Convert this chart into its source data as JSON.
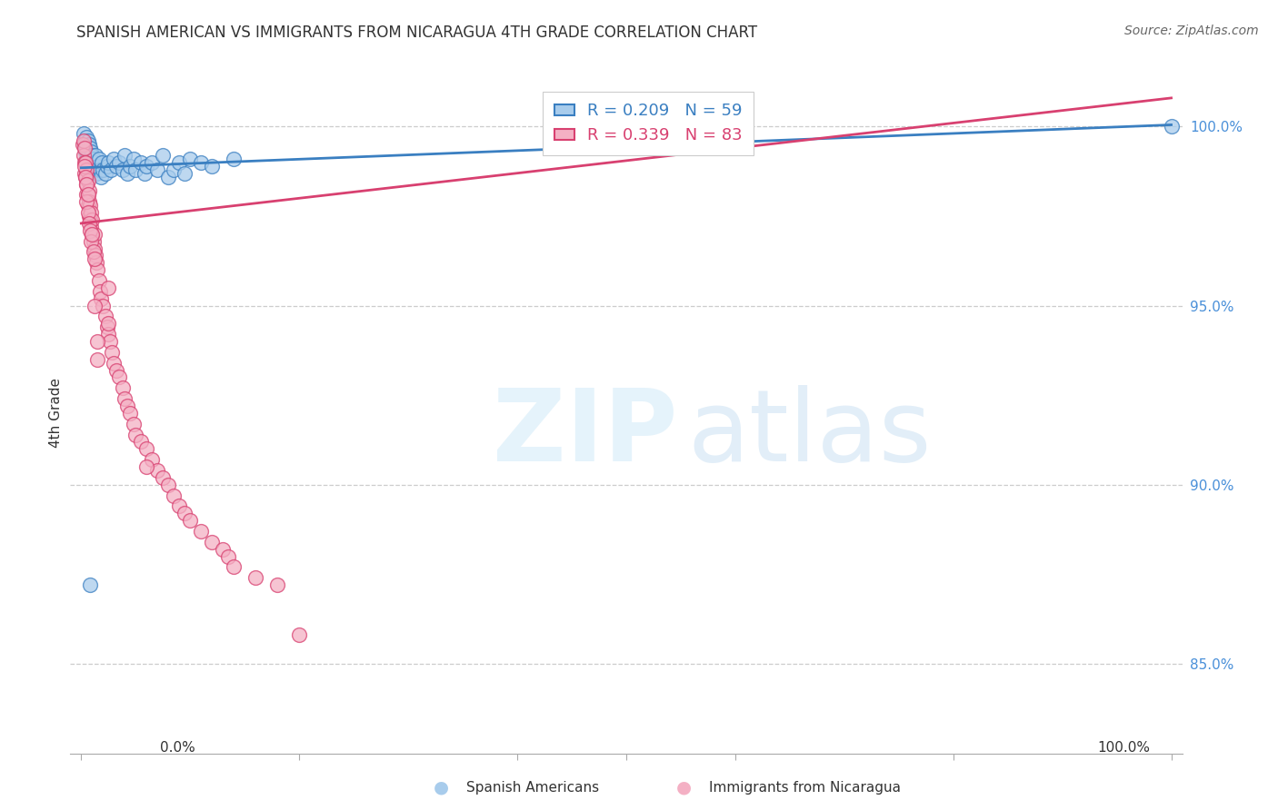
{
  "title": "SPANISH AMERICAN VS IMMIGRANTS FROM NICARAGUA 4TH GRADE CORRELATION CHART",
  "source": "Source: ZipAtlas.com",
  "ylabel": "4th Grade",
  "color_blue": "#a8ccec",
  "color_pink": "#f4b0c4",
  "color_blue_line": "#3a7fc1",
  "color_pink_line": "#d84070",
  "legend_r_blue": "R = 0.209",
  "legend_n_blue": "N = 59",
  "legend_r_pink": "R = 0.339",
  "legend_n_pink": "N = 83",
  "ymin": 82.5,
  "ymax": 101.5,
  "xmin": -1.0,
  "xmax": 101.0,
  "blue_reg": [
    0,
    100,
    98.85,
    100.05
  ],
  "pink_reg": [
    0,
    100,
    97.3,
    100.8
  ],
  "blue_x": [
    0.2,
    0.3,
    0.4,
    0.4,
    0.5,
    0.5,
    0.5,
    0.6,
    0.6,
    0.6,
    0.7,
    0.7,
    0.7,
    0.8,
    0.8,
    0.9,
    0.9,
    1.0,
    1.0,
    1.1,
    1.2,
    1.3,
    1.3,
    1.4,
    1.5,
    1.6,
    1.7,
    1.8,
    1.9,
    2.0,
    2.2,
    2.4,
    2.5,
    2.7,
    3.0,
    3.2,
    3.5,
    3.8,
    4.0,
    4.2,
    4.5,
    4.8,
    5.0,
    5.5,
    5.8,
    6.0,
    6.5,
    7.0,
    7.5,
    8.0,
    8.5,
    9.0,
    9.5,
    10.0,
    11.0,
    12.0,
    14.0,
    0.8,
    100.0
  ],
  "blue_y": [
    99.8,
    99.5,
    99.6,
    99.3,
    99.7,
    99.4,
    99.1,
    99.6,
    99.2,
    98.9,
    99.5,
    99.1,
    98.7,
    99.4,
    99.0,
    99.3,
    98.8,
    99.2,
    98.9,
    99.1,
    99.0,
    98.8,
    99.2,
    98.7,
    98.9,
    99.1,
    98.8,
    98.6,
    99.0,
    98.8,
    98.7,
    98.9,
    99.0,
    98.8,
    99.1,
    98.9,
    99.0,
    98.8,
    99.2,
    98.7,
    98.9,
    99.1,
    98.8,
    99.0,
    98.7,
    98.9,
    99.0,
    98.8,
    99.2,
    98.6,
    98.8,
    99.0,
    98.7,
    99.1,
    99.0,
    98.9,
    99.1,
    87.2,
    100.0
  ],
  "pink_x": [
    0.1,
    0.2,
    0.2,
    0.3,
    0.3,
    0.3,
    0.4,
    0.4,
    0.5,
    0.5,
    0.5,
    0.6,
    0.6,
    0.6,
    0.7,
    0.7,
    0.7,
    0.8,
    0.8,
    0.9,
    0.9,
    1.0,
    1.0,
    1.1,
    1.2,
    1.2,
    1.3,
    1.4,
    1.5,
    1.6,
    1.7,
    1.8,
    2.0,
    2.2,
    2.4,
    2.5,
    2.6,
    2.8,
    3.0,
    3.2,
    3.5,
    3.8,
    4.0,
    4.2,
    4.5,
    4.8,
    5.0,
    5.5,
    6.0,
    6.5,
    7.0,
    7.5,
    8.0,
    8.5,
    9.0,
    9.5,
    10.0,
    11.0,
    12.0,
    13.0,
    13.5,
    14.0,
    16.0,
    18.0,
    20.0,
    0.3,
    0.4,
    0.5,
    0.5,
    0.6,
    0.6,
    0.7,
    0.8,
    0.9,
    1.0,
    1.1,
    1.2,
    2.5,
    2.5,
    1.2,
    1.5,
    1.5,
    6.0
  ],
  "pink_y": [
    99.5,
    99.6,
    99.2,
    99.4,
    99.0,
    98.7,
    99.0,
    98.6,
    98.8,
    98.4,
    98.1,
    98.5,
    98.1,
    97.8,
    98.2,
    97.9,
    97.5,
    97.8,
    97.4,
    97.6,
    97.2,
    97.4,
    97.0,
    96.8,
    97.0,
    96.6,
    96.4,
    96.2,
    96.0,
    95.7,
    95.4,
    95.2,
    95.0,
    94.7,
    94.4,
    94.2,
    94.0,
    93.7,
    93.4,
    93.2,
    93.0,
    92.7,
    92.4,
    92.2,
    92.0,
    91.7,
    91.4,
    91.2,
    91.0,
    90.7,
    90.4,
    90.2,
    90.0,
    89.7,
    89.4,
    89.2,
    89.0,
    88.7,
    88.4,
    88.2,
    88.0,
    87.7,
    87.4,
    87.2,
    85.8,
    98.9,
    98.6,
    98.4,
    97.9,
    98.1,
    97.6,
    97.3,
    97.1,
    96.8,
    97.0,
    96.5,
    96.3,
    95.5,
    94.5,
    95.0,
    94.0,
    93.5,
    90.5
  ]
}
